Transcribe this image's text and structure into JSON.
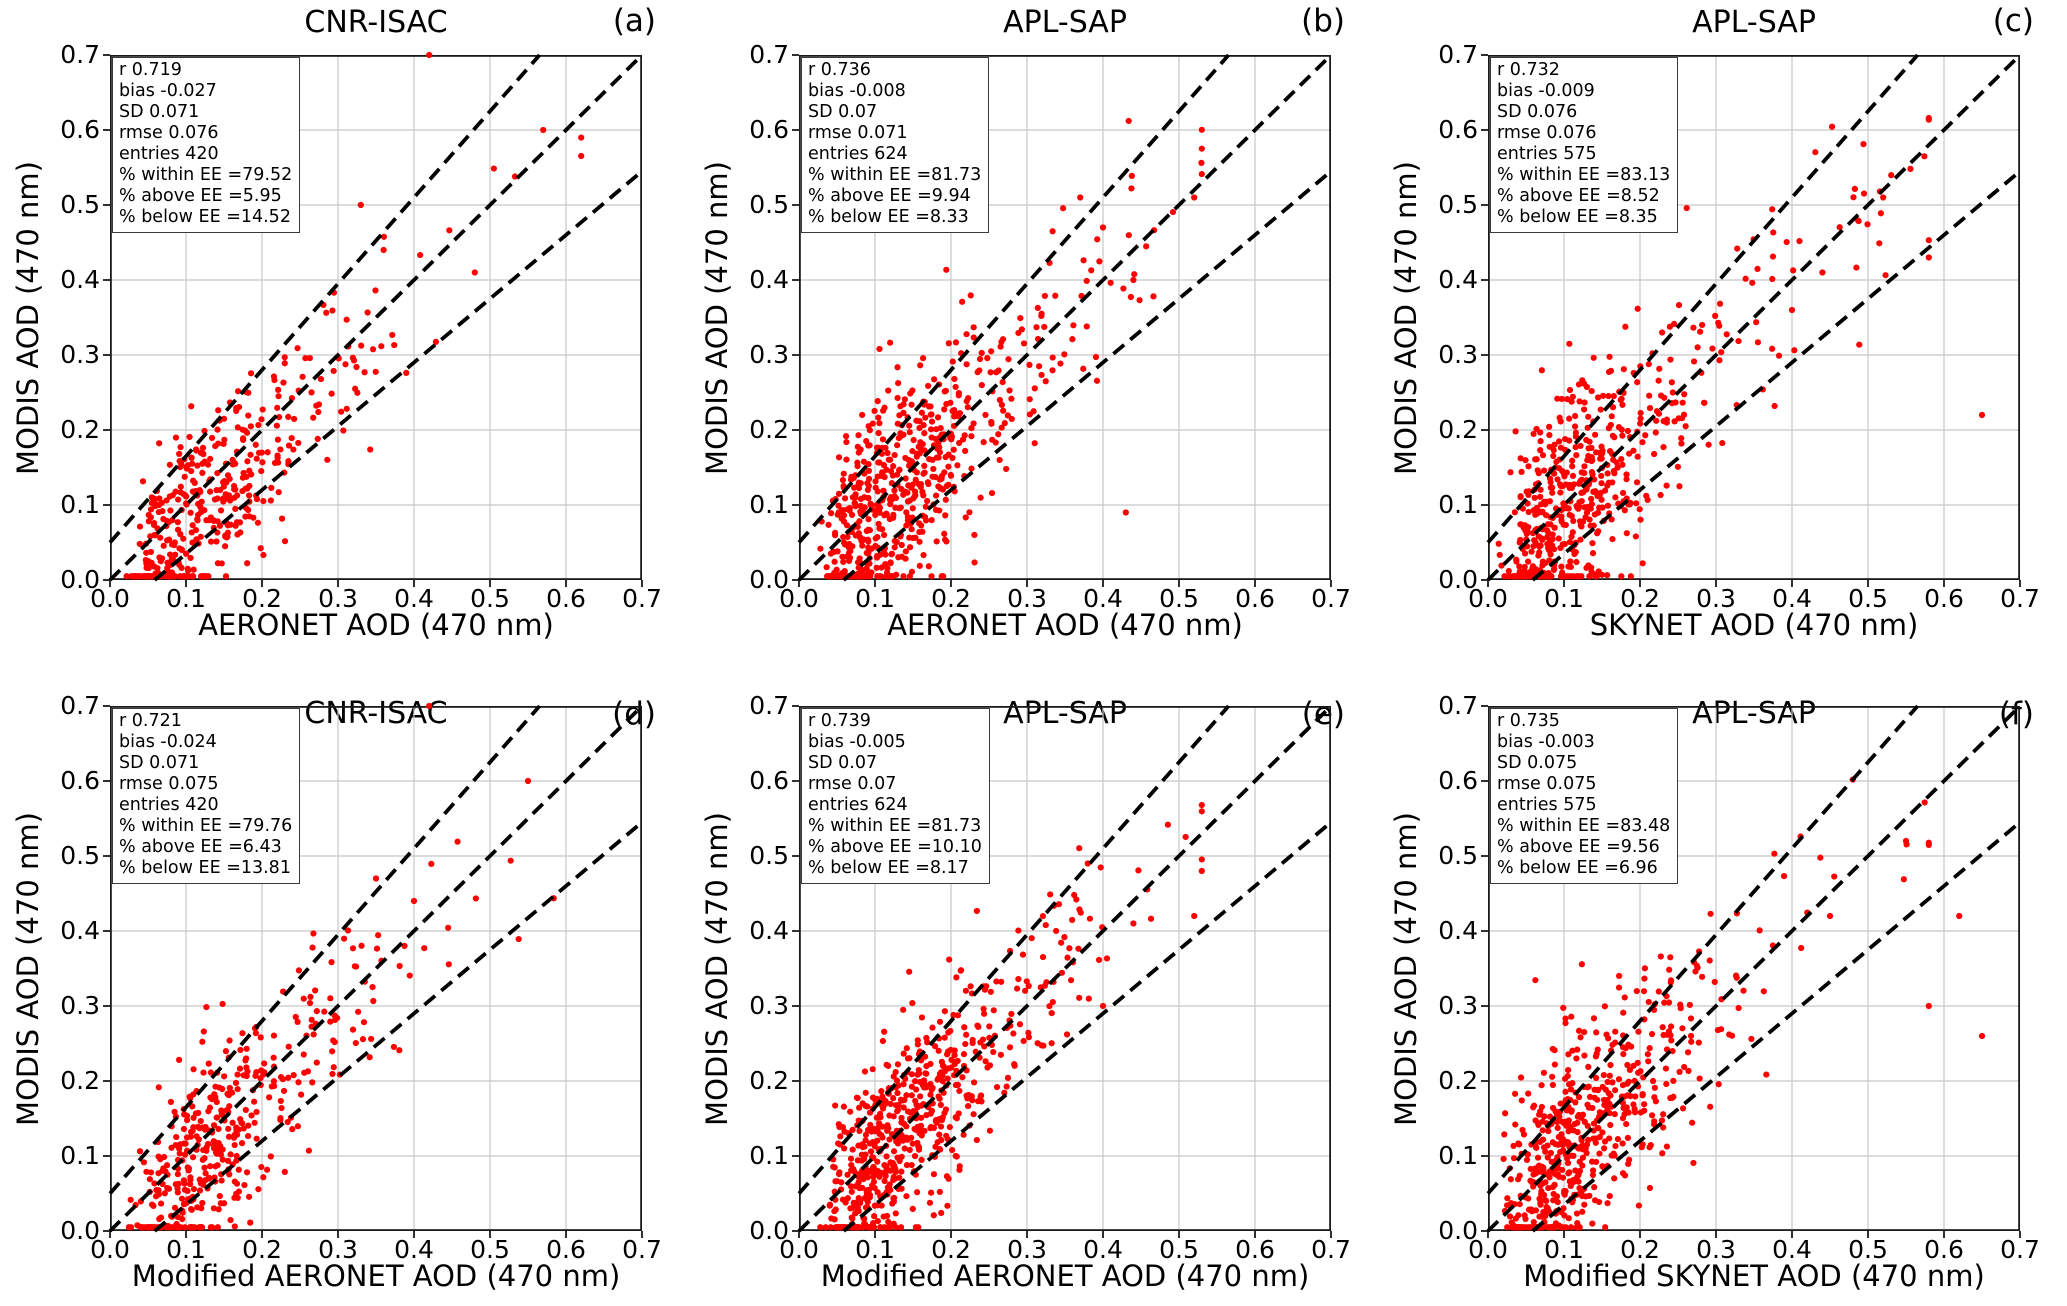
{
  "chart_data": {
    "type": "scatter",
    "grid": true,
    "axis_range": [
      0.0,
      0.7
    ],
    "tick_step": 0.1,
    "x_ticks": [
      "0.0",
      "0.1",
      "0.2",
      "0.3",
      "0.4",
      "0.5",
      "0.6",
      "0.7"
    ],
    "y_ticks": [
      "0.0",
      "0.1",
      "0.2",
      "0.3",
      "0.4",
      "0.5",
      "0.6",
      "0.7"
    ],
    "point_color": "#ff0000",
    "grid_color": "#c8c8c8",
    "spine_color": "#1a1a1a",
    "dashed_line_color": "#000000",
    "ee_lines": [
      {
        "name": "one-to-one-line",
        "slope": 1.0,
        "intercept": 0.0
      },
      {
        "name": "upper-expected-error-line",
        "slope": 1.15,
        "intercept": 0.05
      },
      {
        "name": "lower-expected-error-line",
        "slope": 0.85,
        "intercept": -0.05
      }
    ],
    "panels": [
      {
        "id": "a",
        "letter": "(a)",
        "title": "CNR-ISAC",
        "xlabel": "AERONET AOD (470 nm)",
        "ylabel": "MODIS AOD (470 nm)",
        "stats": {
          "r": 0.719,
          "bias": -0.027,
          "SD": 0.071,
          "rmse": 0.076,
          "entries": 420,
          "pct_within_EE": 79.52,
          "pct_above_EE": 5.95,
          "pct_below_EE": 14.52
        },
        "stats_lines": [
          "r 0.719",
          "bias -0.027",
          "SD 0.071",
          "rmse 0.076",
          "entries 420",
          "% within EE =79.52",
          "% above EE =5.95",
          "% below EE =14.52"
        ],
        "scatter_gen": {
          "seed": 101,
          "n": 420,
          "x_median": 0.13,
          "x_sigma": 0.58,
          "bias": -0.027,
          "noise_sd": 0.066,
          "x_max": 0.62
        },
        "extra_points": [
          [
            0.57,
            0.6
          ],
          [
            0.42,
            0.7
          ],
          [
            0.48,
            0.41
          ],
          [
            0.33,
            0.5
          ],
          [
            0.36,
            0.44
          ]
        ]
      },
      {
        "id": "b",
        "letter": "(b)",
        "title": "APL-SAP",
        "xlabel": "AERONET AOD (470 nm)",
        "ylabel": "MODIS AOD (470 nm)",
        "stats": {
          "r": 0.736,
          "bias": -0.008,
          "SD": 0.07,
          "rmse": 0.071,
          "entries": 624,
          "pct_within_EE": 81.73,
          "pct_above_EE": 9.94,
          "pct_below_EE": 8.33
        },
        "stats_lines": [
          "r 0.736",
          "bias -0.008",
          "SD 0.07",
          "rmse 0.071",
          "entries 624",
          "% within EE =81.73",
          "% above EE =9.94",
          "% below EE =8.33"
        ],
        "scatter_gen": {
          "seed": 202,
          "n": 624,
          "x_median": 0.13,
          "x_sigma": 0.56,
          "bias": -0.008,
          "noise_sd": 0.068,
          "x_max": 0.53
        },
        "extra_points": [
          [
            0.52,
            0.51
          ],
          [
            0.44,
            0.4
          ],
          [
            0.43,
            0.09
          ],
          [
            0.4,
            0.47
          ],
          [
            0.37,
            0.51
          ]
        ]
      },
      {
        "id": "c",
        "letter": "(c)",
        "title": "APL-SAP",
        "xlabel": "SKYNET AOD (470 nm)",
        "ylabel": "MODIS AOD (470 nm)",
        "stats": {
          "r": 0.732,
          "bias": -0.009,
          "SD": 0.076,
          "rmse": 0.076,
          "entries": 575,
          "pct_within_EE": 83.13,
          "pct_above_EE": 8.52,
          "pct_below_EE": 8.35
        },
        "stats_lines": [
          "r 0.732",
          "bias -0.009",
          "SD 0.076",
          "rmse 0.076",
          "entries 575",
          "% within EE =83.13",
          "% above EE =8.52",
          "% below EE =8.35"
        ],
        "scatter_gen": {
          "seed": 303,
          "n": 575,
          "x_median": 0.12,
          "x_sigma": 0.62,
          "bias": -0.009,
          "noise_sd": 0.072,
          "x_max": 0.58
        },
        "extra_points": [
          [
            0.65,
            0.22
          ],
          [
            0.52,
            0.51
          ],
          [
            0.58,
            0.43
          ],
          [
            0.44,
            0.41
          ],
          [
            0.4,
            0.36
          ]
        ]
      },
      {
        "id": "d",
        "letter": "(d)",
        "title": "CNR-ISAC",
        "xlabel": "Modified AERONET AOD (470 nm)",
        "ylabel": "MODIS AOD (470 nm)",
        "stats": {
          "r": 0.721,
          "bias": -0.024,
          "SD": 0.071,
          "rmse": 0.075,
          "entries": 420,
          "pct_within_EE": 79.76,
          "pct_above_EE": 6.43,
          "pct_below_EE": 13.81
        },
        "stats_lines": [
          "r 0.721",
          "bias -0.024",
          "SD 0.071",
          "rmse 0.075",
          "entries 420",
          "% within EE =79.76",
          "% above EE =6.43",
          "% below EE =13.81"
        ],
        "scatter_gen": {
          "seed": 404,
          "n": 420,
          "x_median": 0.14,
          "x_sigma": 0.57,
          "bias": -0.024,
          "noise_sd": 0.066,
          "x_max": 0.6
        },
        "extra_points": [
          [
            0.55,
            0.6
          ],
          [
            0.42,
            0.7
          ],
          [
            0.4,
            0.44
          ],
          [
            0.35,
            0.47
          ]
        ]
      },
      {
        "id": "e",
        "letter": "(e)",
        "title": "APL-SAP",
        "xlabel": "Modified AERONET AOD (470 nm)",
        "ylabel": "MODIS AOD (470 nm)",
        "stats": {
          "r": 0.739,
          "bias": -0.005,
          "SD": 0.07,
          "rmse": 0.07,
          "entries": 624,
          "pct_within_EE": 81.73,
          "pct_above_EE": 10.1,
          "pct_below_EE": 8.17
        },
        "stats_lines": [
          "r 0.739",
          "bias -0.005",
          "SD 0.07",
          "rmse 0.07",
          "entries 624",
          "% within EE =81.73",
          "% above EE =10.10",
          "% below EE =8.17"
        ],
        "scatter_gen": {
          "seed": 505,
          "n": 624,
          "x_median": 0.135,
          "x_sigma": 0.56,
          "bias": -0.005,
          "noise_sd": 0.066,
          "x_max": 0.53
        },
        "extra_points": [
          [
            0.52,
            0.42
          ],
          [
            0.44,
            0.41
          ],
          [
            0.4,
            0.3
          ],
          [
            0.38,
            0.49
          ]
        ]
      },
      {
        "id": "f",
        "letter": "(f)",
        "title": "APL-SAP",
        "xlabel": "Modified SKYNET AOD (470 nm)",
        "ylabel": "MODIS AOD (470 nm)",
        "stats": {
          "r": 0.735,
          "bias": -0.003,
          "SD": 0.075,
          "rmse": 0.075,
          "entries": 575,
          "pct_within_EE": 83.48,
          "pct_above_EE": 9.56,
          "pct_below_EE": 6.96
        },
        "stats_lines": [
          "r 0.735",
          "bias -0.003",
          "SD 0.075",
          "rmse 0.075",
          "entries 575",
          "% within EE =83.48",
          "% above EE =9.56",
          "% below EE =6.96"
        ],
        "scatter_gen": {
          "seed": 606,
          "n": 575,
          "x_median": 0.125,
          "x_sigma": 0.62,
          "bias": -0.003,
          "noise_sd": 0.071,
          "x_max": 0.58
        },
        "extra_points": [
          [
            0.65,
            0.26
          ],
          [
            0.55,
            0.52
          ],
          [
            0.62,
            0.42
          ],
          [
            0.58,
            0.3
          ],
          [
            0.45,
            0.42
          ]
        ]
      }
    ]
  }
}
